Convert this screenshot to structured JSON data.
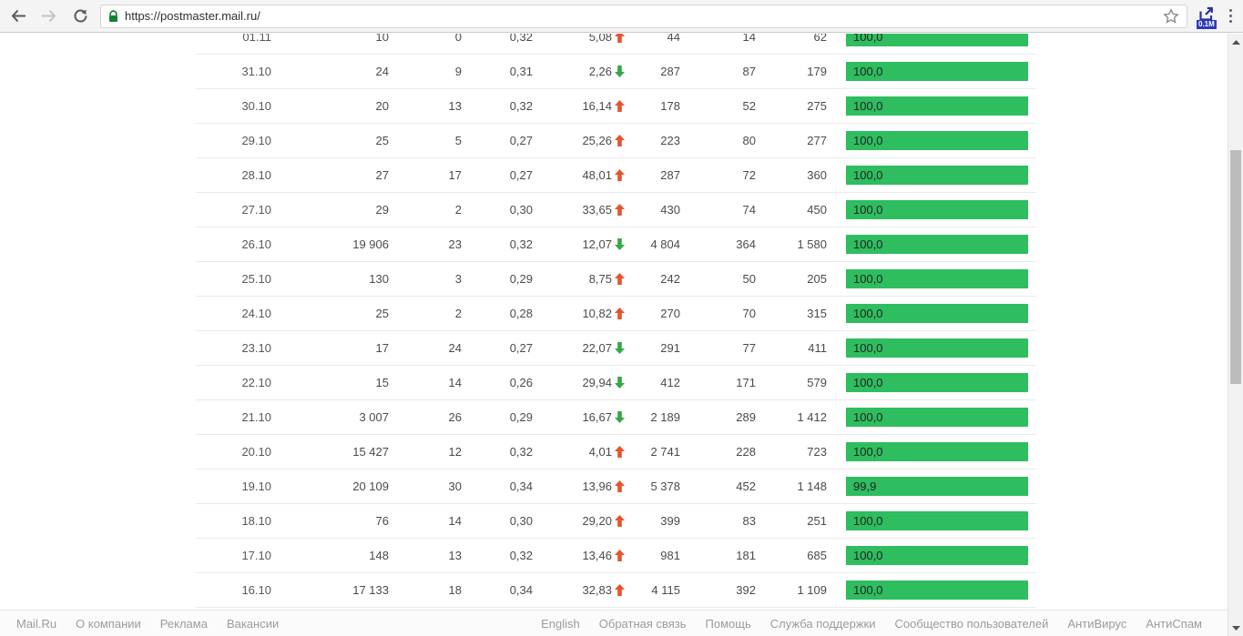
{
  "browser": {
    "url": "https://postmaster.mail.ru/",
    "extension_badge": "0.1M"
  },
  "colors": {
    "bar_green": "#2ebd5f",
    "arrow_up": "#e8532e",
    "arrow_down": "#35a845",
    "lock_green": "#188038"
  },
  "chart_data": {
    "type": "table",
    "columns": [
      "date",
      "c1",
      "c2",
      "c3",
      "change",
      "c5",
      "c6",
      "c7",
      "bar"
    ],
    "rows": [
      {
        "date": "01.11",
        "c1": "10",
        "c2": "0",
        "c3": "0,32",
        "c4": "5,08",
        "trend": "up",
        "c5": "44",
        "c6": "14",
        "c7": "62",
        "bar_label": "100,0",
        "bar_pct": 100
      },
      {
        "date": "31.10",
        "c1": "24",
        "c2": "9",
        "c3": "0,31",
        "c4": "2,26",
        "trend": "down",
        "c5": "287",
        "c6": "87",
        "c7": "179",
        "bar_label": "100,0",
        "bar_pct": 100
      },
      {
        "date": "30.10",
        "c1": "20",
        "c2": "13",
        "c3": "0,32",
        "c4": "16,14",
        "trend": "up",
        "c5": "178",
        "c6": "52",
        "c7": "275",
        "bar_label": "100,0",
        "bar_pct": 100
      },
      {
        "date": "29.10",
        "c1": "25",
        "c2": "5",
        "c3": "0,27",
        "c4": "25,26",
        "trend": "up",
        "c5": "223",
        "c6": "80",
        "c7": "277",
        "bar_label": "100,0",
        "bar_pct": 100
      },
      {
        "date": "28.10",
        "c1": "27",
        "c2": "17",
        "c3": "0,27",
        "c4": "48,01",
        "trend": "up",
        "c5": "287",
        "c6": "72",
        "c7": "360",
        "bar_label": "100,0",
        "bar_pct": 100
      },
      {
        "date": "27.10",
        "c1": "29",
        "c2": "2",
        "c3": "0,30",
        "c4": "33,65",
        "trend": "up",
        "c5": "430",
        "c6": "74",
        "c7": "450",
        "bar_label": "100,0",
        "bar_pct": 100
      },
      {
        "date": "26.10",
        "c1": "19 906",
        "c2": "23",
        "c3": "0,32",
        "c4": "12,07",
        "trend": "down",
        "c5": "4 804",
        "c6": "364",
        "c7": "1 580",
        "bar_label": "100,0",
        "bar_pct": 100
      },
      {
        "date": "25.10",
        "c1": "130",
        "c2": "3",
        "c3": "0,29",
        "c4": "8,75",
        "trend": "up",
        "c5": "242",
        "c6": "50",
        "c7": "205",
        "bar_label": "100,0",
        "bar_pct": 100
      },
      {
        "date": "24.10",
        "c1": "25",
        "c2": "2",
        "c3": "0,28",
        "c4": "10,82",
        "trend": "up",
        "c5": "270",
        "c6": "70",
        "c7": "315",
        "bar_label": "100,0",
        "bar_pct": 100
      },
      {
        "date": "23.10",
        "c1": "17",
        "c2": "24",
        "c3": "0,27",
        "c4": "22,07",
        "trend": "down",
        "c5": "291",
        "c6": "77",
        "c7": "411",
        "bar_label": "100,0",
        "bar_pct": 100
      },
      {
        "date": "22.10",
        "c1": "15",
        "c2": "14",
        "c3": "0,26",
        "c4": "29,94",
        "trend": "down",
        "c5": "412",
        "c6": "171",
        "c7": "579",
        "bar_label": "100,0",
        "bar_pct": 100
      },
      {
        "date": "21.10",
        "c1": "3 007",
        "c2": "26",
        "c3": "0,29",
        "c4": "16,67",
        "trend": "down",
        "c5": "2 189",
        "c6": "289",
        "c7": "1 412",
        "bar_label": "100,0",
        "bar_pct": 100
      },
      {
        "date": "20.10",
        "c1": "15 427",
        "c2": "12",
        "c3": "0,32",
        "c4": "4,01",
        "trend": "up",
        "c5": "2 741",
        "c6": "228",
        "c7": "723",
        "bar_label": "100,0",
        "bar_pct": 100
      },
      {
        "date": "19.10",
        "c1": "20 109",
        "c2": "30",
        "c3": "0,34",
        "c4": "13,96",
        "trend": "up",
        "c5": "5 378",
        "c6": "452",
        "c7": "1 148",
        "bar_label": "99,9",
        "bar_pct": 99.9
      },
      {
        "date": "18.10",
        "c1": "76",
        "c2": "14",
        "c3": "0,30",
        "c4": "29,20",
        "trend": "up",
        "c5": "399",
        "c6": "83",
        "c7": "251",
        "bar_label": "100,0",
        "bar_pct": 100
      },
      {
        "date": "17.10",
        "c1": "148",
        "c2": "13",
        "c3": "0,32",
        "c4": "13,46",
        "trend": "up",
        "c5": "981",
        "c6": "181",
        "c7": "685",
        "bar_label": "100,0",
        "bar_pct": 100
      },
      {
        "date": "16.10",
        "c1": "17 133",
        "c2": "18",
        "c3": "0,34",
        "c4": "32,83",
        "trend": "up",
        "c5": "4 115",
        "c6": "392",
        "c7": "1 109",
        "bar_label": "100,0",
        "bar_pct": 100
      }
    ]
  },
  "footer": {
    "left": [
      "Mail.Ru",
      "О компании",
      "Реклама",
      "Вакансии"
    ],
    "right": [
      "English",
      "Обратная связь",
      "Помощь",
      "Служба поддержки",
      "Сообщество пользователей",
      "АнтиВирус",
      "АнтиСпам"
    ]
  }
}
